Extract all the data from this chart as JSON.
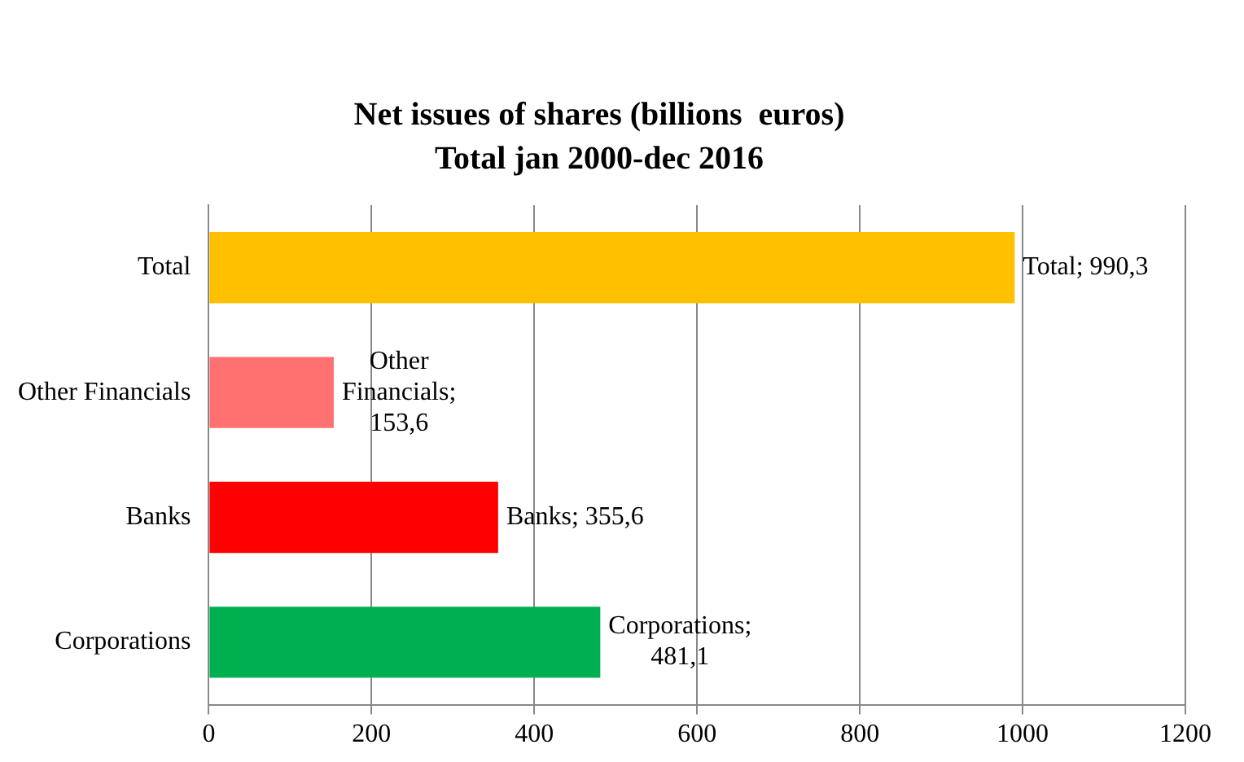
{
  "chart_data": {
    "type": "bar",
    "orientation": "horizontal",
    "title": "Net issues of shares (billions  euros)\nTotal jan 2000-dec 2016",
    "categories": [
      "Total",
      "Other Financials",
      "Banks",
      "Corporations"
    ],
    "values": [
      990.3,
      153.6,
      355.6,
      481.1
    ],
    "colors": [
      "#ffc000",
      "#ff7070",
      "#ff0000",
      "#00b050"
    ],
    "value_labels": [
      "Total; 990,3",
      "Other Financials; 153,6",
      "Banks; 355,6",
      "Corporations; 481,1"
    ],
    "xlim": [
      0,
      1200
    ],
    "xticks": [
      0,
      200,
      400,
      600,
      800,
      1000,
      1200
    ],
    "grid": "x",
    "legend": false
  }
}
